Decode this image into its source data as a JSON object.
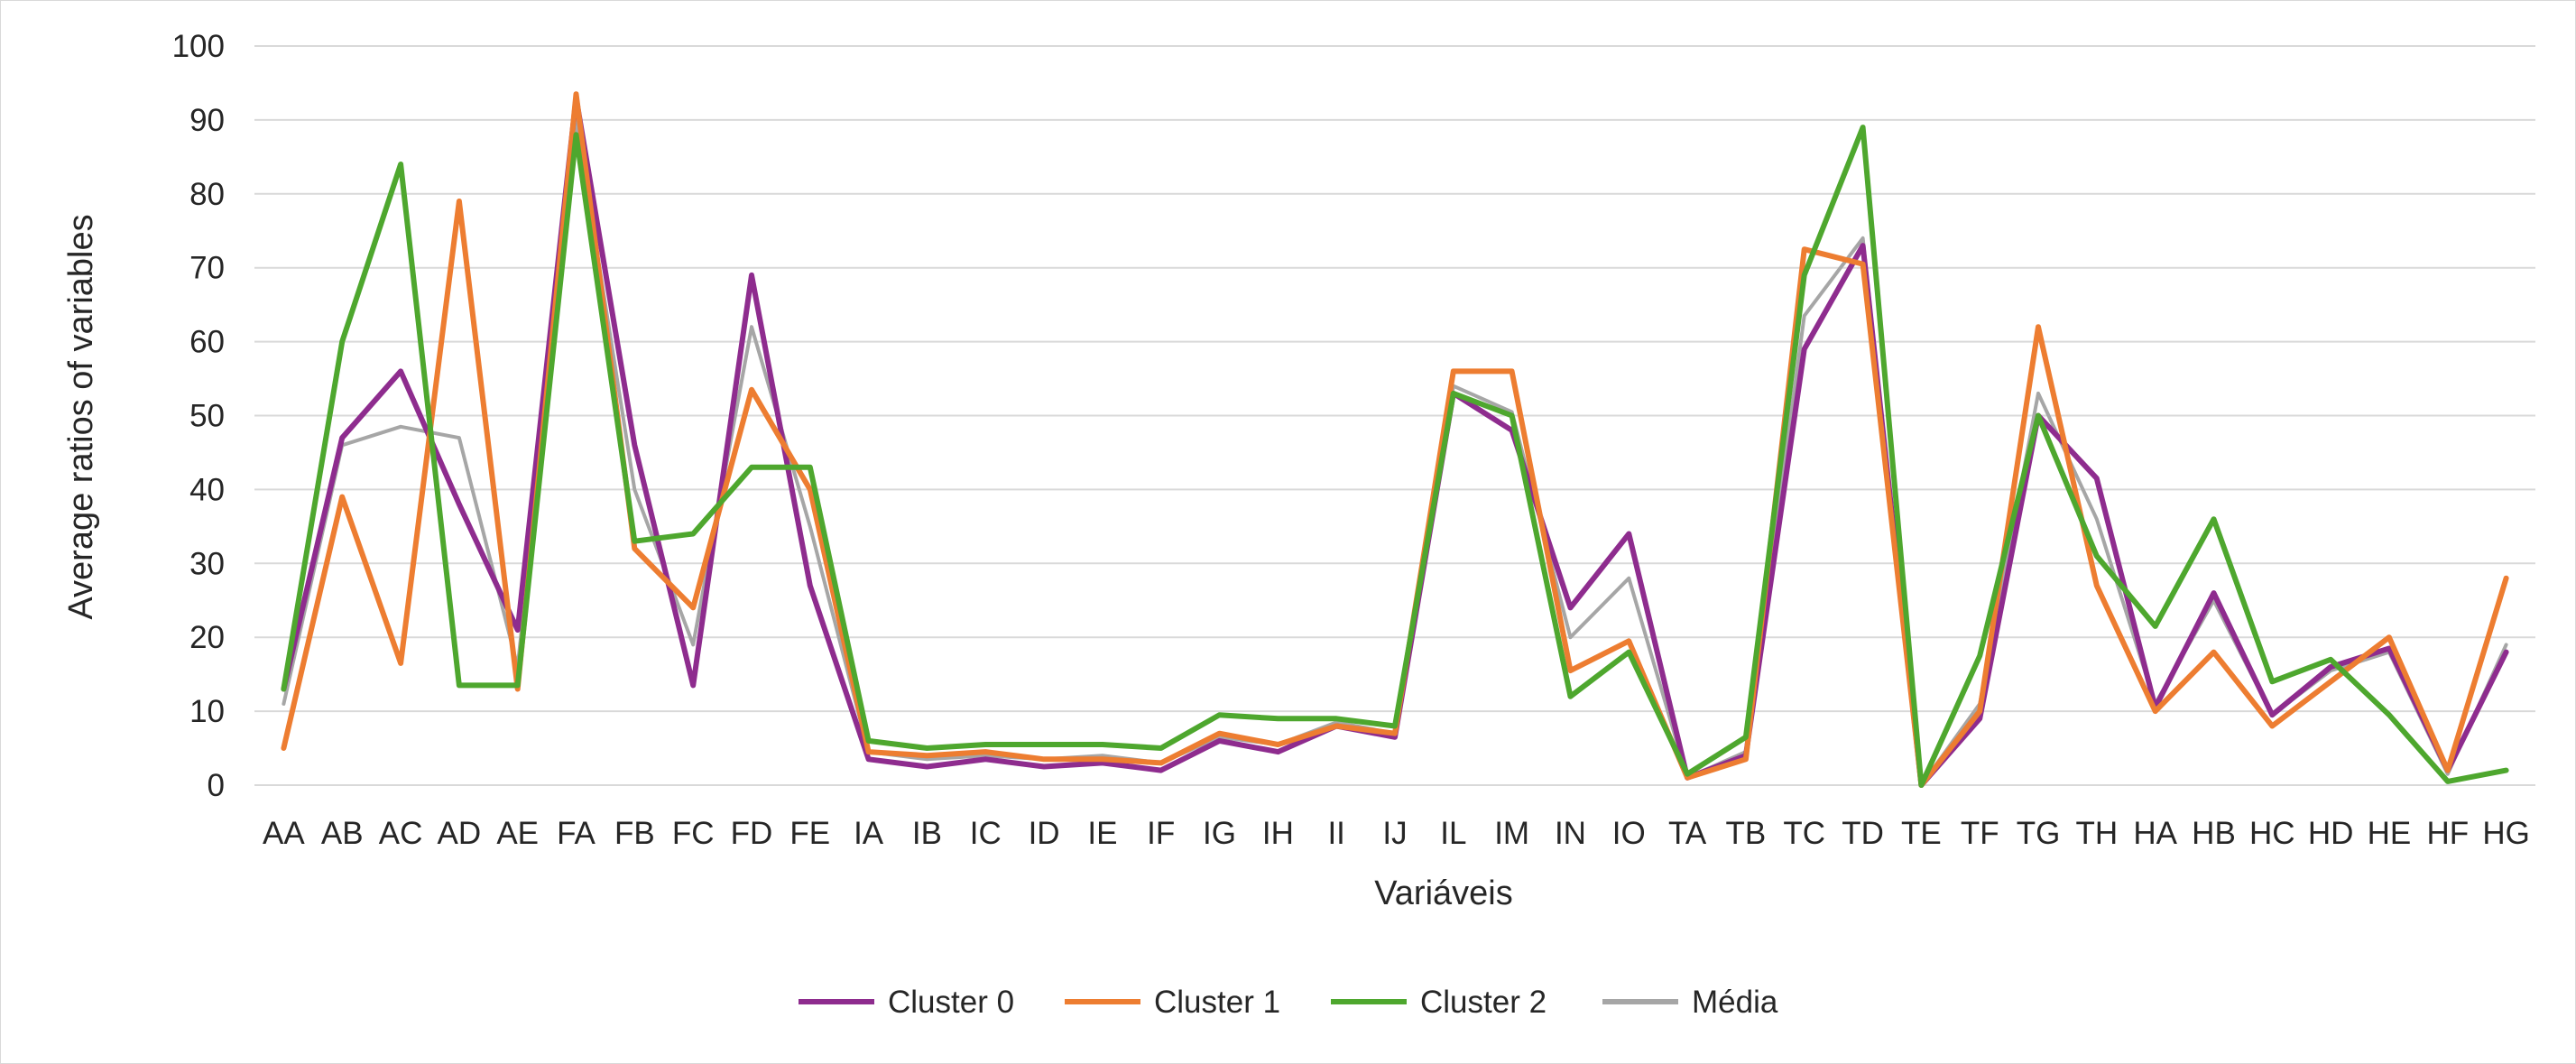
{
  "chart_data": {
    "type": "line",
    "title": "",
    "xlabel": "Variáveis",
    "ylabel": "Average ratios of variables",
    "ylim": [
      0,
      100
    ],
    "yticks": [
      0,
      10,
      20,
      30,
      40,
      50,
      60,
      70,
      80,
      90,
      100
    ],
    "grid": true,
    "legend_position": "bottom",
    "categories": [
      "AA",
      "AB",
      "AC",
      "AD",
      "AE",
      "FA",
      "FB",
      "FC",
      "FD",
      "FE",
      "IA",
      "IB",
      "IC",
      "ID",
      "IE",
      "IF",
      "IG",
      "IH",
      "II",
      "IJ",
      "IL",
      "IM",
      "IN",
      "IO",
      "TA",
      "TB",
      "TC",
      "TD",
      "TE",
      "TF",
      "TG",
      "TH",
      "HA",
      "HB",
      "HC",
      "HD",
      "HE",
      "HF",
      "HG"
    ],
    "series": [
      {
        "name": "Cluster 0",
        "color": "#8e2c8e",
        "values": [
          13,
          47,
          56,
          38,
          21,
          93,
          46,
          13.5,
          69,
          27,
          3.5,
          2.5,
          3.5,
          2.5,
          3,
          2,
          6,
          4.5,
          8,
          6.5,
          53,
          48,
          24,
          34,
          1,
          4,
          59,
          73,
          0,
          9,
          50,
          41.5,
          10.5,
          26,
          9.5,
          16,
          18.5,
          2,
          18
        ]
      },
      {
        "name": "Cluster 1",
        "color": "#ed7d31",
        "values": [
          5,
          39,
          16.5,
          79,
          13,
          93.5,
          32,
          24,
          53.5,
          40,
          4.5,
          4,
          4.5,
          3.5,
          3.5,
          3,
          7,
          5.5,
          8,
          7,
          56,
          56,
          15.5,
          19.5,
          1,
          3.5,
          72.5,
          70.5,
          0,
          10,
          62,
          27,
          10,
          18,
          8,
          14,
          20,
          2,
          28
        ]
      },
      {
        "name": "Cluster 2",
        "color": "#4ea72e",
        "values": [
          13,
          60,
          84,
          13.5,
          13.5,
          88,
          33,
          34,
          43,
          43,
          6,
          5,
          5.5,
          5.5,
          5.5,
          5,
          9.5,
          9,
          9,
          8,
          53,
          50,
          12,
          18,
          1.5,
          6.5,
          69,
          89,
          0,
          17.5,
          50,
          31,
          21.5,
          36,
          14,
          17,
          9.5,
          0.5,
          2
        ]
      },
      {
        "name": "Média",
        "color": "#a6a6a6",
        "values": [
          11,
          46,
          48.5,
          47,
          16,
          90,
          40,
          19,
          62,
          35,
          4.5,
          3.5,
          4,
          3.5,
          4,
          3,
          6.5,
          5.5,
          8.5,
          7,
          54,
          50.5,
          20,
          28,
          1,
          4.5,
          63.5,
          74,
          0,
          11,
          53,
          36,
          11,
          25,
          9.5,
          15.5,
          18,
          1.5,
          19
        ]
      }
    ]
  }
}
